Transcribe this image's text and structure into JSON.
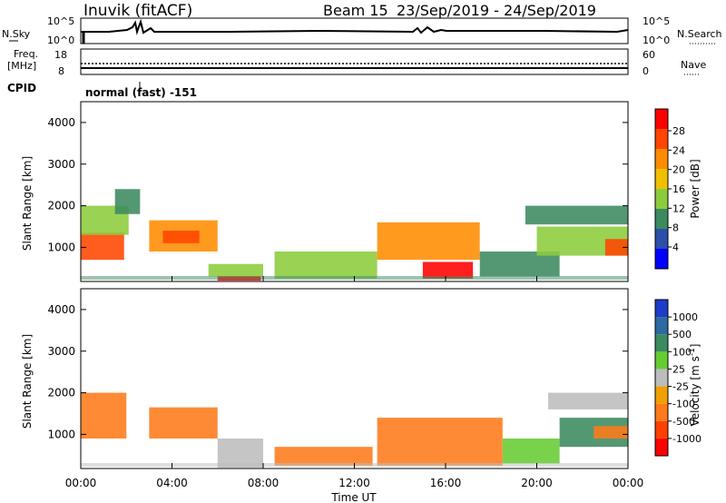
{
  "header": {
    "station": "Inuvik (fitACF)",
    "beam": "Beam 15",
    "date_range": "23/Sep/2019 - 24/Sep/2019"
  },
  "status_panels": {
    "nsky_label": "N.Sky",
    "nsky_ticks": [
      "10^5",
      "10^0"
    ],
    "nsearch_label": "N.Search",
    "nsearch_ticks": [
      "10^5",
      "10^0"
    ],
    "freq_label_line1": "Freq.",
    "freq_label_line2": "[MHz]",
    "freq_ticks": [
      "18",
      "8"
    ],
    "nave_label": "Nave",
    "nave_ticks": [
      "60",
      "0"
    ],
    "cpid_label": "CPID",
    "cpid_value": "normal (fast) -151"
  },
  "time_axis": {
    "label": "Time UT",
    "ticks": [
      "00:00",
      "04:00",
      "08:00",
      "12:00",
      "16:00",
      "20:00",
      "00:00"
    ]
  },
  "colors": {
    "power_scale": [
      "#0000ff",
      "#2c4faa",
      "#3c8a60",
      "#8ccc3c",
      "#f0c000",
      "#ff8c00",
      "#ff4500",
      "#ff0000"
    ],
    "velocity_scale": [
      "#1e3cc8",
      "#2c6aa0",
      "#3c8a60",
      "#66cc33",
      "#bdbdbd",
      "#f0a000",
      "#ff7a1a",
      "#ff4000",
      "#ff0000"
    ]
  },
  "chart_data": [
    {
      "type": "heatmap",
      "title": "Power",
      "xlabel": "Time UT",
      "ylabel": "Slant Range [km]",
      "xlim": [
        0,
        24
      ],
      "ylim": [
        180,
        4500
      ],
      "yticks": [
        1000,
        2000,
        3000,
        4000
      ],
      "colorbar": {
        "label": "Power [dB]",
        "ticks": [
          "28",
          "24",
          "20",
          "16",
          "12",
          "8",
          "4"
        ]
      },
      "regions": [
        {
          "x": [
            0.0,
            1.9
          ],
          "y": [
            700,
            1350
          ],
          "value": 26
        },
        {
          "x": [
            0.0,
            2.1
          ],
          "y": [
            1300,
            2000
          ],
          "value": 14
        },
        {
          "x": [
            1.5,
            2.6
          ],
          "y": [
            1800,
            2400
          ],
          "value": 10
        },
        {
          "x": [
            3.0,
            6.0
          ],
          "y": [
            900,
            1650
          ],
          "value": 20
        },
        {
          "x": [
            3.6,
            5.2
          ],
          "y": [
            1100,
            1400
          ],
          "value": 26
        },
        {
          "x": [
            6.0,
            7.9
          ],
          "y": [
            200,
            300
          ],
          "value": 28
        },
        {
          "x": [
            5.6,
            8.0
          ],
          "y": [
            300,
            600
          ],
          "value": 14
        },
        {
          "x": [
            8.5,
            13.0
          ],
          "y": [
            250,
            900
          ],
          "value": 12
        },
        {
          "x": [
            13.0,
            17.5
          ],
          "y": [
            700,
            1600
          ],
          "value": 20
        },
        {
          "x": [
            15.0,
            17.2
          ],
          "y": [
            250,
            650
          ],
          "value": 28
        },
        {
          "x": [
            17.5,
            21.0
          ],
          "y": [
            300,
            900
          ],
          "value": 10
        },
        {
          "x": [
            19.5,
            24.0
          ],
          "y": [
            1550,
            2000
          ],
          "value": 8
        },
        {
          "x": [
            20.0,
            24.0
          ],
          "y": [
            800,
            1500
          ],
          "value": 14
        },
        {
          "x": [
            23.0,
            24.0
          ],
          "y": [
            800,
            1200
          ],
          "value": 26
        }
      ]
    },
    {
      "type": "heatmap",
      "title": "Velocity",
      "xlabel": "Time UT",
      "ylabel": "Slant Range [km]",
      "xlim": [
        0,
        24
      ],
      "ylim": [
        180,
        4500
      ],
      "yticks": [
        1000,
        2000,
        3000,
        4000
      ],
      "colorbar": {
        "label": "Velocity [m s^-1]",
        "ticks": [
          "1000",
          "500",
          "100",
          "25",
          "-25",
          "-100",
          "-500",
          "-1000"
        ]
      },
      "regions": [
        {
          "x": [
            0.0,
            2.0
          ],
          "y": [
            900,
            2000
          ],
          "value": -300
        },
        {
          "x": [
            3.0,
            6.0
          ],
          "y": [
            900,
            1650
          ],
          "value": -300
        },
        {
          "x": [
            6.0,
            8.0
          ],
          "y": [
            200,
            900
          ],
          "value": 0
        },
        {
          "x": [
            8.5,
            12.8
          ],
          "y": [
            250,
            700
          ],
          "value": -150
        },
        {
          "x": [
            13.0,
            18.5
          ],
          "y": [
            250,
            1400
          ],
          "value": -300
        },
        {
          "x": [
            18.5,
            21.0
          ],
          "y": [
            300,
            900
          ],
          "value": 60
        },
        {
          "x": [
            20.5,
            24.0
          ],
          "y": [
            1600,
            2000
          ],
          "value": 0
        },
        {
          "x": [
            21.0,
            24.0
          ],
          "y": [
            700,
            1400
          ],
          "value": 150
        },
        {
          "x": [
            22.5,
            24.0
          ],
          "y": [
            900,
            1200
          ],
          "value": -400
        }
      ]
    }
  ]
}
